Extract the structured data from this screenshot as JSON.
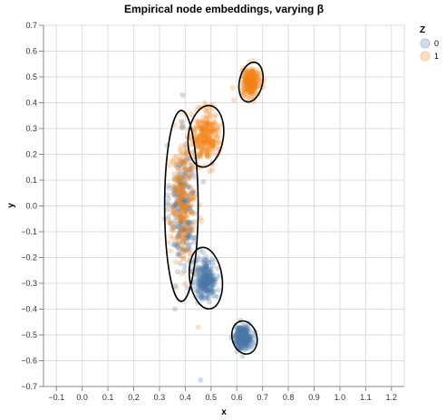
{
  "chart_data": {
    "type": "scatter",
    "title": "Empirical node embeddings, varying β",
    "xlabel": "x",
    "ylabel": "y",
    "xlim": [
      -0.15,
      1.25
    ],
    "ylim": [
      -0.7,
      0.7
    ],
    "x_ticks": [
      "−0.1",
      "0.0",
      "0.1",
      "0.2",
      "0.3",
      "0.4",
      "0.5",
      "0.6",
      "0.7",
      "0.8",
      "0.9",
      "1.0",
      "1.1",
      "1.2"
    ],
    "y_ticks": [
      "−0.7",
      "−0.6",
      "−0.5",
      "−0.4",
      "−0.3",
      "−0.2",
      "−0.1",
      "0.0",
      "0.1",
      "0.2",
      "0.3",
      "0.4",
      "0.5",
      "0.6",
      "0.7"
    ],
    "grid": true,
    "legend": {
      "title": "Z",
      "position": "top-right",
      "entries": [
        {
          "label": "0",
          "color": "#4c78a8"
        },
        {
          "label": "1",
          "color": "#f58518"
        }
      ]
    },
    "series": [
      {
        "group": "0",
        "color": "#4c78a8",
        "clusters": [
          {
            "center": [
              0.39,
              0.0
            ],
            "spread": [
              0.025,
              0.12
            ],
            "count": 240
          },
          {
            "center": [
              0.48,
              -0.285
            ],
            "spread": [
              0.022,
              0.04
            ],
            "count": 260
          },
          {
            "center": [
              0.625,
              -0.51
            ],
            "spread": [
              0.016,
              0.022
            ],
            "count": 260
          }
        ]
      },
      {
        "group": "1",
        "color": "#f58518",
        "clusters": [
          {
            "center": [
              0.39,
              0.02
            ],
            "spread": [
              0.025,
              0.12
            ],
            "count": 240
          },
          {
            "center": [
              0.48,
              0.27
            ],
            "spread": [
              0.025,
              0.05
            ],
            "count": 260
          },
          {
            "center": [
              0.655,
              0.48
            ],
            "spread": [
              0.017,
              0.025
            ],
            "count": 260
          }
        ]
      }
    ],
    "ellipses": [
      {
        "center": [
          0.385,
          0.0
        ],
        "rx": 0.065,
        "ry": 0.37,
        "angle": 0
      },
      {
        "center": [
          0.48,
          0.27
        ],
        "rx": 0.068,
        "ry": 0.12,
        "angle": 8
      },
      {
        "center": [
          0.655,
          0.48
        ],
        "rx": 0.045,
        "ry": 0.078,
        "angle": 12
      },
      {
        "center": [
          0.48,
          -0.28
        ],
        "rx": 0.063,
        "ry": 0.12,
        "angle": -8
      },
      {
        "center": [
          0.63,
          -0.51
        ],
        "rx": 0.048,
        "ry": 0.065,
        "angle": -15
      }
    ],
    "outliers": [
      {
        "group": "0",
        "x": 0.39,
        "y": 0.43
      },
      {
        "group": "0",
        "x": 0.46,
        "y": -0.675
      },
      {
        "group": "0",
        "x": 0.36,
        "y": -0.4
      },
      {
        "group": "1",
        "x": 0.45,
        "y": -0.47
      }
    ]
  }
}
